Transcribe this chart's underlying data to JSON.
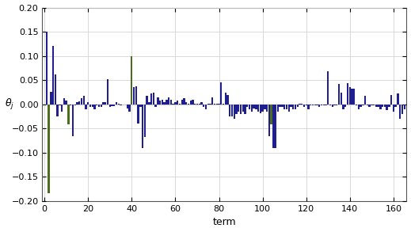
{
  "title": "",
  "xlabel": "term",
  "ylabel": "$\\theta_j$",
  "ylim": [
    -0.2,
    0.2
  ],
  "xlim": [
    -1,
    166
  ],
  "bar_color_default": "#1f1f8f",
  "bar_color_green": "#4a6e1a",
  "green_indices": [
    2,
    11,
    40,
    104
  ],
  "figsize": [
    5.19,
    2.93
  ],
  "dpi": 100,
  "values": [
    [
      1,
      0.15
    ],
    [
      2,
      -0.183
    ],
    [
      3,
      0.026
    ],
    [
      4,
      0.12
    ],
    [
      5,
      0.062
    ],
    [
      6,
      -0.025
    ],
    [
      7,
      -0.002
    ],
    [
      8,
      -0.015
    ],
    [
      9,
      0.013
    ],
    [
      10,
      0.008
    ],
    [
      11,
      -0.042
    ],
    [
      12,
      -0.002
    ],
    [
      13,
      -0.065
    ],
    [
      14,
      -0.002
    ],
    [
      15,
      0.005
    ],
    [
      16,
      0.007
    ],
    [
      17,
      0.013
    ],
    [
      18,
      0.018
    ],
    [
      19,
      -0.01
    ],
    [
      20,
      0.005
    ],
    [
      21,
      -0.005
    ],
    [
      22,
      -0.005
    ],
    [
      23,
      -0.01
    ],
    [
      24,
      -0.002
    ],
    [
      25,
      -0.005
    ],
    [
      26,
      -0.005
    ],
    [
      27,
      0.005
    ],
    [
      28,
      0.005
    ],
    [
      29,
      0.052
    ],
    [
      30,
      -0.005
    ],
    [
      31,
      -0.003
    ],
    [
      32,
      -0.003
    ],
    [
      33,
      0.005
    ],
    [
      34,
      0.002
    ],
    [
      35,
      -0.002
    ],
    [
      36,
      0.0
    ],
    [
      37,
      0.0
    ],
    [
      38,
      -0.008
    ],
    [
      39,
      -0.015
    ],
    [
      40,
      0.1
    ],
    [
      41,
      0.036
    ],
    [
      42,
      0.038
    ],
    [
      43,
      -0.04
    ],
    [
      44,
      -0.005
    ],
    [
      45,
      -0.09
    ],
    [
      46,
      -0.068
    ],
    [
      47,
      0.018
    ],
    [
      48,
      0.005
    ],
    [
      49,
      0.022
    ],
    [
      50,
      0.025
    ],
    [
      51,
      -0.005
    ],
    [
      52,
      0.015
    ],
    [
      53,
      0.008
    ],
    [
      54,
      0.01
    ],
    [
      55,
      0.005
    ],
    [
      56,
      0.01
    ],
    [
      57,
      0.015
    ],
    [
      58,
      0.01
    ],
    [
      59,
      0.002
    ],
    [
      60,
      0.005
    ],
    [
      61,
      0.008
    ],
    [
      62,
      0.002
    ],
    [
      63,
      0.01
    ],
    [
      64,
      0.012
    ],
    [
      65,
      0.005
    ],
    [
      66,
      0.002
    ],
    [
      67,
      0.008
    ],
    [
      68,
      0.01
    ],
    [
      69,
      0.002
    ],
    [
      70,
      0.002
    ],
    [
      71,
      0.002
    ],
    [
      72,
      0.005
    ],
    [
      73,
      -0.005
    ],
    [
      74,
      -0.01
    ],
    [
      75,
      0.002
    ],
    [
      76,
      0.002
    ],
    [
      77,
      0.015
    ],
    [
      78,
      0.002
    ],
    [
      79,
      0.002
    ],
    [
      80,
      0.002
    ],
    [
      81,
      0.046
    ],
    [
      82,
      0.002
    ],
    [
      83,
      0.025
    ],
    [
      84,
      0.02
    ],
    [
      85,
      -0.025
    ],
    [
      86,
      -0.025
    ],
    [
      87,
      -0.03
    ],
    [
      88,
      -0.02
    ],
    [
      89,
      -0.015
    ],
    [
      90,
      -0.02
    ],
    [
      91,
      -0.015
    ],
    [
      92,
      -0.02
    ],
    [
      93,
      -0.005
    ],
    [
      94,
      -0.01
    ],
    [
      95,
      -0.015
    ],
    [
      96,
      -0.008
    ],
    [
      97,
      -0.01
    ],
    [
      98,
      -0.015
    ],
    [
      99,
      -0.018
    ],
    [
      100,
      -0.015
    ],
    [
      101,
      -0.01
    ],
    [
      102,
      -0.015
    ],
    [
      103,
      -0.065
    ],
    [
      104,
      -0.042
    ],
    [
      105,
      -0.09
    ],
    [
      106,
      -0.09
    ],
    [
      107,
      -0.015
    ],
    [
      108,
      -0.005
    ],
    [
      109,
      -0.005
    ],
    [
      110,
      -0.01
    ],
    [
      111,
      -0.01
    ],
    [
      112,
      -0.015
    ],
    [
      113,
      -0.005
    ],
    [
      114,
      -0.01
    ],
    [
      115,
      -0.01
    ],
    [
      116,
      -0.005
    ],
    [
      117,
      0.002
    ],
    [
      118,
      0.002
    ],
    [
      119,
      -0.005
    ],
    [
      120,
      -0.002
    ],
    [
      121,
      -0.01
    ],
    [
      122,
      -0.002
    ],
    [
      123,
      -0.002
    ],
    [
      124,
      -0.002
    ],
    [
      125,
      -0.002
    ],
    [
      126,
      -0.005
    ],
    [
      127,
      -0.002
    ],
    [
      128,
      -0.002
    ],
    [
      129,
      -0.002
    ],
    [
      130,
      0.068
    ],
    [
      131,
      -0.002
    ],
    [
      132,
      -0.005
    ],
    [
      133,
      -0.002
    ],
    [
      134,
      -0.002
    ],
    [
      135,
      0.042
    ],
    [
      136,
      0.025
    ],
    [
      137,
      -0.01
    ],
    [
      138,
      -0.005
    ],
    [
      139,
      0.044
    ],
    [
      140,
      0.035
    ],
    [
      141,
      0.033
    ],
    [
      142,
      0.032
    ],
    [
      143,
      -0.002
    ],
    [
      144,
      -0.01
    ],
    [
      145,
      -0.005
    ],
    [
      146,
      -0.002
    ],
    [
      147,
      0.018
    ],
    [
      148,
      -0.002
    ],
    [
      149,
      -0.005
    ],
    [
      150,
      -0.002
    ],
    [
      151,
      -0.002
    ],
    [
      152,
      -0.005
    ],
    [
      153,
      -0.005
    ],
    [
      154,
      -0.01
    ],
    [
      155,
      -0.005
    ],
    [
      156,
      -0.005
    ],
    [
      157,
      -0.012
    ],
    [
      158,
      -0.005
    ],
    [
      159,
      0.02
    ],
    [
      160,
      -0.015
    ],
    [
      161,
      -0.005
    ],
    [
      162,
      0.022
    ],
    [
      163,
      -0.03
    ],
    [
      164,
      -0.02
    ],
    [
      165,
      -0.01
    ]
  ]
}
